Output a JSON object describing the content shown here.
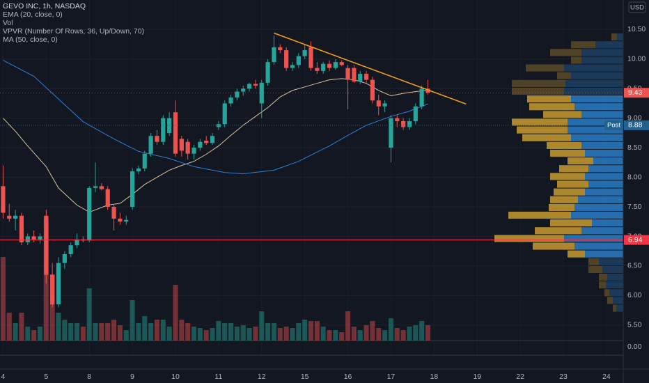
{
  "chart_data": {
    "type": "candlestick",
    "title": "GEVO INC, 1h, NASDAQ",
    "currency": "USD",
    "indicators": [
      "EMA (20, close, 0)",
      "Vol",
      "VPVR (Number Of Rows, 36, Up/Down, 70)",
      "MA (50, close, 0)"
    ],
    "x": [
      0,
      1,
      2,
      3,
      4,
      5,
      6,
      7,
      8,
      9,
      10,
      11,
      12,
      13,
      14,
      15,
      16,
      17,
      18,
      19,
      20,
      21,
      22,
      23,
      24,
      25,
      26,
      27,
      28,
      29,
      30,
      31,
      32,
      33,
      34,
      35,
      36,
      37,
      38,
      39,
      40,
      41,
      42,
      43,
      44,
      45,
      46,
      47,
      48,
      49,
      50,
      51,
      52,
      53,
      54,
      55,
      56,
      57,
      58,
      59,
      60,
      61,
      62,
      63,
      64,
      65,
      66,
      67,
      68,
      69
    ],
    "open": [
      7.85,
      7.35,
      7.3,
      7.35,
      6.9,
      7.0,
      6.95,
      7.35,
      6.35,
      5.85,
      6.55,
      6.7,
      6.85,
      6.95,
      6.93,
      7.82,
      7.85,
      7.8,
      7.5,
      7.3,
      7.25,
      7.5,
      8.1,
      8.15,
      8.4,
      8.7,
      8.6,
      8.75,
      9.1,
      8.65,
      8.6,
      8.4,
      8.5,
      8.62,
      8.58,
      8.85,
      8.9,
      9.25,
      9.35,
      9.45,
      9.5,
      9.58,
      9.25,
      9.6,
      9.95,
      10.2,
      10.15,
      9.85,
      9.9,
      10.05,
      10.2,
      9.85,
      9.8,
      9.92,
      9.85,
      9.95,
      9.85,
      9.85,
      9.62,
      9.75,
      9.65,
      9.3,
      9.2,
      8.5,
      9.0,
      8.95,
      8.85,
      8.95,
      9.2,
      9.5
    ],
    "high": [
      8.2,
      7.55,
      7.45,
      7.4,
      7.05,
      7.1,
      7.05,
      7.45,
      6.55,
      6.65,
      6.75,
      6.9,
      7.05,
      7.0,
      7.85,
      8.25,
      7.9,
      7.85,
      7.55,
      7.4,
      7.35,
      8.15,
      8.2,
      8.45,
      8.75,
      8.8,
      9.05,
      9.1,
      9.3,
      8.7,
      8.65,
      8.55,
      8.65,
      8.7,
      8.75,
      8.95,
      9.3,
      9.4,
      9.5,
      9.55,
      9.6,
      9.65,
      9.65,
      10.0,
      10.4,
      10.25,
      10.2,
      9.95,
      10.1,
      10.25,
      10.3,
      9.95,
      9.95,
      9.98,
      10.0,
      9.98,
      9.9,
      9.9,
      9.8,
      9.8,
      9.7,
      9.4,
      9.3,
      9.05,
      9.05,
      9.0,
      9.0,
      9.25,
      9.55,
      9.65
    ],
    "low": [
      7.3,
      7.25,
      7.1,
      6.85,
      6.85,
      6.9,
      6.88,
      6.2,
      5.8,
      5.8,
      6.45,
      6.65,
      6.8,
      6.9,
      6.9,
      7.75,
      7.78,
      7.45,
      7.1,
      7.2,
      7.2,
      7.45,
      8.05,
      8.1,
      8.35,
      8.55,
      8.55,
      8.7,
      8.35,
      8.35,
      8.3,
      8.3,
      8.45,
      8.55,
      8.55,
      8.8,
      8.85,
      9.2,
      9.3,
      9.38,
      9.45,
      9.5,
      9.0,
      9.55,
      9.9,
      10.1,
      9.8,
      9.8,
      9.85,
      10.0,
      9.8,
      9.75,
      9.75,
      9.8,
      9.82,
      9.88,
      9.15,
      9.6,
      9.58,
      9.6,
      9.25,
      9.05,
      9.1,
      8.25,
      8.85,
      8.8,
      8.8,
      8.9,
      9.15,
      9.4
    ],
    "close": [
      7.4,
      7.3,
      7.35,
      6.9,
      7.0,
      6.95,
      7.0,
      6.35,
      5.85,
      6.55,
      6.7,
      6.85,
      6.95,
      6.93,
      7.82,
      7.85,
      7.8,
      7.5,
      7.3,
      7.25,
      7.28,
      8.1,
      8.15,
      8.4,
      8.7,
      8.6,
      9.0,
      9.0,
      8.4,
      8.45,
      8.4,
      8.5,
      8.6,
      8.58,
      8.7,
      8.9,
      9.25,
      9.35,
      9.45,
      9.5,
      9.58,
      9.55,
      9.6,
      9.95,
      10.2,
      10.15,
      9.85,
      9.9,
      10.05,
      10.15,
      9.85,
      9.8,
      9.92,
      9.85,
      9.95,
      9.9,
      9.65,
      9.62,
      9.75,
      9.65,
      9.3,
      9.2,
      9.25,
      9.0,
      8.95,
      8.85,
      8.95,
      9.2,
      9.5,
      9.43
    ],
    "volume": [
      120,
      40,
      25,
      40,
      20,
      15,
      20,
      175,
      95,
      40,
      30,
      25,
      25,
      20,
      75,
      25,
      25,
      25,
      30,
      22,
      15,
      58,
      25,
      35,
      25,
      30,
      30,
      20,
      80,
      30,
      25,
      20,
      18,
      15,
      18,
      28,
      25,
      25,
      20,
      22,
      18,
      20,
      42,
      25,
      25,
      18,
      20,
      18,
      25,
      30,
      28,
      28,
      20,
      15,
      15,
      12,
      42,
      20,
      15,
      22,
      28,
      18,
      15,
      32,
      18,
      15,
      20,
      22,
      28,
      22
    ],
    "up_color": "#26a69a",
    "down_color": "#ef5350",
    "xlim": [
      -0.5,
      100.5
    ],
    "xticks": [
      {
        "value": 0,
        "label": "4"
      },
      {
        "value": 7,
        "label": "5"
      },
      {
        "value": 14,
        "label": "8"
      },
      {
        "value": 21,
        "label": "9"
      },
      {
        "value": 28,
        "label": "10"
      },
      {
        "value": 35,
        "label": "11"
      },
      {
        "value": 42,
        "label": "12"
      },
      {
        "value": 49,
        "label": "15"
      },
      {
        "value": 56,
        "label": "16"
      },
      {
        "value": 63,
        "label": "17"
      },
      {
        "value": 70,
        "label": "18"
      },
      {
        "value": 77,
        "label": "19"
      },
      {
        "value": 84,
        "label": "22"
      },
      {
        "value": 91,
        "label": "23"
      },
      {
        "value": 98,
        "label": "24"
      }
    ],
    "ylim": [
      5.25,
      11.0
    ],
    "yticks": [
      {
        "value": 10.5,
        "label": "10.50"
      },
      {
        "value": 10,
        "label": "10.00"
      },
      {
        "value": 9.5,
        "label": "9.50"
      },
      {
        "value": 9,
        "label": "9.00"
      },
      {
        "value": 8.5,
        "label": "8.50"
      },
      {
        "value": 8,
        "label": "8.00"
      },
      {
        "value": 7.5,
        "label": "7.50"
      },
      {
        "value": 7,
        "label": "7.00"
      },
      {
        "value": 6.5,
        "label": "6.50"
      },
      {
        "value": 6,
        "label": "6.00"
      },
      {
        "value": 5.5,
        "label": "5.50"
      }
    ],
    "y2lim": [
      0,
      180
    ],
    "y2ticks": [
      {
        "value": 0,
        "label": "0.00"
      }
    ],
    "grid": true,
    "lines": [
      {
        "color": "#d7c59b",
        "x": [
          0,
          2,
          4,
          7,
          9,
          12,
          14,
          15,
          17,
          19,
          21,
          23,
          25,
          27,
          29,
          31,
          33,
          35,
          37,
          39,
          41,
          43,
          45,
          47,
          49,
          51,
          53,
          55,
          57,
          59,
          61,
          63,
          65,
          67,
          69
        ],
        "values": [
          9.0,
          8.78,
          8.53,
          8.18,
          7.82,
          7.53,
          7.41,
          7.45,
          7.53,
          7.56,
          7.71,
          7.88,
          8.0,
          8.12,
          8.2,
          8.27,
          8.39,
          8.53,
          8.71,
          8.88,
          9.03,
          9.18,
          9.36,
          9.47,
          9.53,
          9.59,
          9.65,
          9.67,
          9.65,
          9.59,
          9.47,
          9.38,
          9.42,
          9.45,
          9.47
        ]
      },
      {
        "color": "#2f7fd8",
        "x": [
          0,
          5,
          13,
          18,
          22,
          27,
          31,
          36,
          39,
          44,
          48,
          53,
          56,
          59,
          63,
          66,
          69
        ],
        "values": [
          9.98,
          9.71,
          8.94,
          8.65,
          8.44,
          8.32,
          8.18,
          8.08,
          8.06,
          8.12,
          8.27,
          8.53,
          8.71,
          8.88,
          9.03,
          9.12,
          9.24
        ]
      }
    ],
    "trendline": {
      "color": "#f0a020",
      "x": [
        44,
        75.2
      ],
      "values": [
        10.44,
        9.24
      ]
    },
    "price_line": {
      "value": 6.94,
      "color": "#f23645"
    },
    "post_market": {
      "label": "Post",
      "value": 8.88,
      "color": "#23628f"
    },
    "last_price": 9.43,
    "vpvr": {
      "range": [
        5.72,
        10.44
      ],
      "up": [
        9,
        40,
        60,
        60,
        85,
        75,
        83,
        85,
        75,
        70,
        60,
        80,
        80,
        75,
        60,
        55,
        43,
        50,
        55,
        50,
        55,
        65,
        70,
        75,
        45,
        60,
        85,
        70,
        55,
        35,
        30,
        23,
        25,
        20,
        15,
        10
      ],
      "down": [
        8,
        35,
        45,
        15,
        55,
        20,
        77,
        75,
        63,
        65,
        55,
        80,
        73,
        70,
        50,
        50,
        37,
        42,
        50,
        45,
        45,
        40,
        37,
        90,
        60,
        67,
        100,
        60,
        25,
        15,
        20,
        12,
        10,
        7,
        8,
        5
      ],
      "value_area_rows": [
        8,
        28
      ],
      "up_color": "#2a7cc7",
      "down_color": "#c99b2f",
      "up_dim_color": "#1d3f63",
      "down_dim_color": "#5a4a28"
    }
  }
}
